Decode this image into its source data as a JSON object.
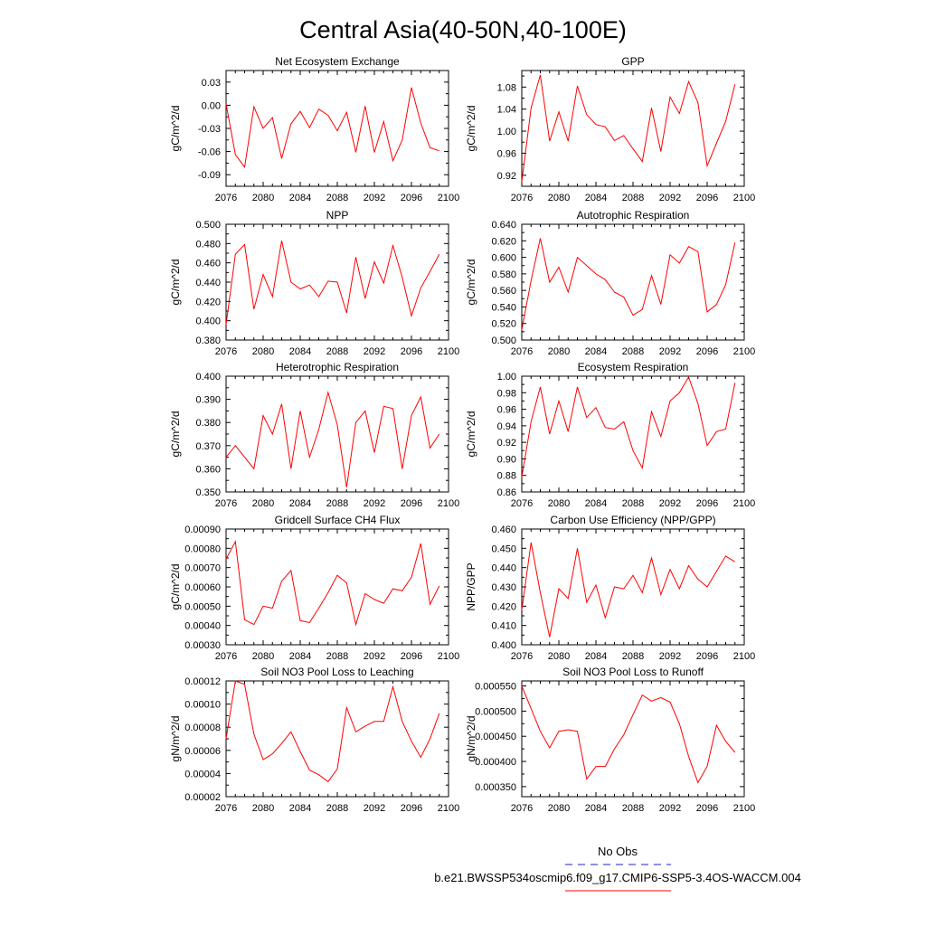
{
  "figure": {
    "title": "Central Asia(40-50N,40-100E)",
    "legend": {
      "obs_label": "No Obs",
      "case_label": "b.e21.BWSSP534oscmip6.f09_g17.CMIP6-SSP5-3.4OS-WACCM.004",
      "obs_color": "#2222cc",
      "case_color": "#ff0000"
    }
  },
  "chart_data": [
    {
      "type": "line",
      "title": "Net Ecosystem Exchange",
      "ylabel": "gC/m^2/d",
      "xlabel": "",
      "xlim": [
        2076,
        2100
      ],
      "ylim": [
        -0.105,
        0.045
      ],
      "xticks": [
        2076,
        2080,
        2084,
        2088,
        2092,
        2096,
        2100
      ],
      "yticks": [
        -0.09,
        -0.06,
        -0.03,
        0.0,
        0.03
      ],
      "ytick_labels": [
        "-0.09",
        "-0.06",
        "-0.03",
        "0.00",
        "0.03"
      ],
      "x": [
        2076,
        2077,
        2078,
        2079,
        2080,
        2081,
        2082,
        2083,
        2084,
        2085,
        2086,
        2087,
        2088,
        2089,
        2090,
        2091,
        2092,
        2093,
        2094,
        2095,
        2096,
        2097,
        2098,
        2099
      ],
      "series": [
        {
          "name": "b.e21.BWSSP534oscmip6.f09_g17.CMIP6-SSP5-3.4OS-WACCM.004",
          "color": "#ff0000",
          "values": [
            0.002,
            -0.064,
            -0.08,
            -0.002,
            -0.03,
            -0.016,
            -0.069,
            -0.024,
            -0.008,
            -0.029,
            -0.005,
            -0.013,
            -0.033,
            -0.009,
            -0.061,
            -0.001,
            -0.061,
            -0.021,
            -0.072,
            -0.045,
            0.023,
            -0.023,
            -0.055,
            -0.059
          ]
        }
      ]
    },
    {
      "type": "line",
      "title": "GPP",
      "ylabel": "gC/m^2/d",
      "xlabel": "",
      "xlim": [
        2076,
        2100
      ],
      "ylim": [
        0.9,
        1.11
      ],
      "xticks": [
        2076,
        2080,
        2084,
        2088,
        2092,
        2096,
        2100
      ],
      "yticks": [
        0.92,
        0.96,
        1.0,
        1.04,
        1.08
      ],
      "ytick_labels": [
        "0.92",
        "0.96",
        "1.00",
        "1.04",
        "1.08"
      ],
      "x": [
        2076,
        2077,
        2078,
        2079,
        2080,
        2081,
        2082,
        2083,
        2084,
        2085,
        2086,
        2087,
        2088,
        2089,
        2090,
        2091,
        2092,
        2093,
        2094,
        2095,
        2096,
        2097,
        2098,
        2099
      ],
      "series": [
        {
          "name": "b.e21.BWSSP534oscmip6.f09_g17.CMIP6-SSP5-3.4OS-WACCM.004",
          "color": "#ff0000",
          "values": [
            0.908,
            1.042,
            1.102,
            0.982,
            1.035,
            0.982,
            1.082,
            1.03,
            1.012,
            1.008,
            0.983,
            0.992,
            0.968,
            0.945,
            1.042,
            0.963,
            1.062,
            1.032,
            1.09,
            1.052,
            0.937,
            0.978,
            1.018,
            1.085
          ]
        }
      ]
    },
    {
      "type": "line",
      "title": "NPP",
      "ylabel": "gC/m^2/d",
      "xlabel": "",
      "xlim": [
        2076,
        2100
      ],
      "ylim": [
        0.38,
        0.5
      ],
      "xticks": [
        2076,
        2080,
        2084,
        2088,
        2092,
        2096,
        2100
      ],
      "yticks": [
        0.38,
        0.4,
        0.42,
        0.44,
        0.46,
        0.48,
        0.5
      ],
      "ytick_labels": [
        "0.380",
        "0.400",
        "0.420",
        "0.440",
        "0.460",
        "0.480",
        "0.500"
      ],
      "x": [
        2076,
        2077,
        2078,
        2079,
        2080,
        2081,
        2082,
        2083,
        2084,
        2085,
        2086,
        2087,
        2088,
        2089,
        2090,
        2091,
        2092,
        2093,
        2094,
        2095,
        2096,
        2097,
        2098,
        2099
      ],
      "series": [
        {
          "name": "b.e21.BWSSP534oscmip6.f09_g17.CMIP6-SSP5-3.4OS-WACCM.004",
          "color": "#ff0000",
          "values": [
            0.396,
            0.469,
            0.479,
            0.412,
            0.448,
            0.425,
            0.483,
            0.44,
            0.433,
            0.437,
            0.425,
            0.441,
            0.44,
            0.408,
            0.466,
            0.423,
            0.461,
            0.439,
            0.478,
            0.445,
            0.405,
            0.434,
            0.451,
            0.469
          ]
        }
      ]
    },
    {
      "type": "line",
      "title": "Autotrophic Respiration",
      "ylabel": "gC/m^2/d",
      "xlabel": "",
      "xlim": [
        2076,
        2100
      ],
      "ylim": [
        0.5,
        0.64
      ],
      "xticks": [
        2076,
        2080,
        2084,
        2088,
        2092,
        2096,
        2100
      ],
      "yticks": [
        0.5,
        0.52,
        0.54,
        0.56,
        0.58,
        0.6,
        0.62,
        0.64
      ],
      "ytick_labels": [
        "0.500",
        "0.520",
        "0.540",
        "0.560",
        "0.580",
        "0.600",
        "0.620",
        "0.640"
      ],
      "x": [
        2076,
        2077,
        2078,
        2079,
        2080,
        2081,
        2082,
        2083,
        2084,
        2085,
        2086,
        2087,
        2088,
        2089,
        2090,
        2091,
        2092,
        2093,
        2094,
        2095,
        2096,
        2097,
        2098,
        2099
      ],
      "series": [
        {
          "name": "b.e21.BWSSP534oscmip6.f09_g17.CMIP6-SSP5-3.4OS-WACCM.004",
          "color": "#ff0000",
          "values": [
            0.512,
            0.572,
            0.623,
            0.57,
            0.588,
            0.558,
            0.6,
            0.59,
            0.58,
            0.573,
            0.558,
            0.552,
            0.53,
            0.537,
            0.578,
            0.543,
            0.603,
            0.593,
            0.613,
            0.607,
            0.534,
            0.543,
            0.567,
            0.618
          ]
        }
      ]
    },
    {
      "type": "line",
      "title": "Heterotrophic Respiration",
      "ylabel": "gC/m^2/d",
      "xlabel": "",
      "xlim": [
        2076,
        2100
      ],
      "ylim": [
        0.35,
        0.4
      ],
      "xticks": [
        2076,
        2080,
        2084,
        2088,
        2092,
        2096,
        2100
      ],
      "yticks": [
        0.35,
        0.36,
        0.37,
        0.38,
        0.39,
        0.4
      ],
      "ytick_labels": [
        "0.350",
        "0.360",
        "0.370",
        "0.380",
        "0.390",
        "0.400"
      ],
      "x": [
        2076,
        2077,
        2078,
        2079,
        2080,
        2081,
        2082,
        2083,
        2084,
        2085,
        2086,
        2087,
        2088,
        2089,
        2090,
        2091,
        2092,
        2093,
        2094,
        2095,
        2096,
        2097,
        2098,
        2099
      ],
      "series": [
        {
          "name": "b.e21.BWSSP534oscmip6.f09_g17.CMIP6-SSP5-3.4OS-WACCM.004",
          "color": "#ff0000",
          "values": [
            0.365,
            0.37,
            0.365,
            0.36,
            0.383,
            0.375,
            0.388,
            0.36,
            0.385,
            0.365,
            0.377,
            0.393,
            0.379,
            0.352,
            0.38,
            0.385,
            0.367,
            0.387,
            0.386,
            0.36,
            0.383,
            0.391,
            0.369,
            0.375
          ]
        }
      ]
    },
    {
      "type": "line",
      "title": "Ecosystem Respiration",
      "ylabel": "gC/m^2/d",
      "xlabel": "",
      "xlim": [
        2076,
        2100
      ],
      "ylim": [
        0.86,
        1.0
      ],
      "xticks": [
        2076,
        2080,
        2084,
        2088,
        2092,
        2096,
        2100
      ],
      "yticks": [
        0.86,
        0.88,
        0.9,
        0.92,
        0.94,
        0.96,
        0.98,
        1.0
      ],
      "ytick_labels": [
        "0.86",
        "0.88",
        "0.90",
        "0.92",
        "0.94",
        "0.96",
        "0.98",
        "1.00"
      ],
      "x": [
        2076,
        2077,
        2078,
        2079,
        2080,
        2081,
        2082,
        2083,
        2084,
        2085,
        2086,
        2087,
        2088,
        2089,
        2090,
        2091,
        2092,
        2093,
        2094,
        2095,
        2096,
        2097,
        2098,
        2099
      ],
      "series": [
        {
          "name": "b.e21.BWSSP534oscmip6.f09_g17.CMIP6-SSP5-3.4OS-WACCM.004",
          "color": "#ff0000",
          "values": [
            0.878,
            0.945,
            0.987,
            0.93,
            0.97,
            0.933,
            0.987,
            0.95,
            0.962,
            0.938,
            0.936,
            0.945,
            0.91,
            0.889,
            0.957,
            0.927,
            0.97,
            0.98,
            0.999,
            0.967,
            0.916,
            0.933,
            0.936,
            0.992
          ]
        }
      ]
    },
    {
      "type": "line",
      "title": "Gridcell Surface CH4 Flux",
      "ylabel": "gC/m^2/d",
      "xlabel": "",
      "xlim": [
        2076,
        2100
      ],
      "ylim": [
        0.0003,
        0.0009
      ],
      "xticks": [
        2076,
        2080,
        2084,
        2088,
        2092,
        2096,
        2100
      ],
      "yticks": [
        0.0003,
        0.0004,
        0.0005,
        0.0006,
        0.0007,
        0.0008,
        0.0009
      ],
      "ytick_labels": [
        "0.00030",
        "0.00040",
        "0.00050",
        "0.00060",
        "0.00070",
        "0.00080",
        "0.00090"
      ],
      "x": [
        2076,
        2077,
        2078,
        2079,
        2080,
        2081,
        2082,
        2083,
        2084,
        2085,
        2086,
        2087,
        2088,
        2089,
        2090,
        2091,
        2092,
        2093,
        2094,
        2095,
        2096,
        2097,
        2098,
        2099
      ],
      "series": [
        {
          "name": "b.e21.BWSSP534oscmip6.f09_g17.CMIP6-SSP5-3.4OS-WACCM.004",
          "color": "#ff0000",
          "values": [
            0.000745,
            0.000835,
            0.00043,
            0.000405,
            0.0005,
            0.00049,
            0.00063,
            0.000685,
            0.000425,
            0.000415,
            0.00049,
            0.00057,
            0.00066,
            0.00062,
            0.000405,
            0.000565,
            0.000535,
            0.000515,
            0.00059,
            0.00058,
            0.00065,
            0.000825,
            0.00051,
            0.000605
          ]
        }
      ]
    },
    {
      "type": "line",
      "title": "Carbon Use Efficiency (NPP/GPP)",
      "ylabel": "NPP/GPP",
      "xlabel": "",
      "xlim": [
        2076,
        2100
      ],
      "ylim": [
        0.4,
        0.46
      ],
      "xticks": [
        2076,
        2080,
        2084,
        2088,
        2092,
        2096,
        2100
      ],
      "yticks": [
        0.4,
        0.41,
        0.42,
        0.43,
        0.44,
        0.45,
        0.46
      ],
      "ytick_labels": [
        "0.400",
        "0.410",
        "0.420",
        "0.430",
        "0.440",
        "0.450",
        "0.460"
      ],
      "x": [
        2076,
        2077,
        2078,
        2079,
        2080,
        2081,
        2082,
        2083,
        2084,
        2085,
        2086,
        2087,
        2088,
        2089,
        2090,
        2091,
        2092,
        2093,
        2094,
        2095,
        2096,
        2097,
        2098,
        2099
      ],
      "series": [
        {
          "name": "b.e21.BWSSP534oscmip6.f09_g17.CMIP6-SSP5-3.4OS-WACCM.004",
          "color": "#ff0000",
          "values": [
            0.418,
            0.453,
            0.427,
            0.404,
            0.429,
            0.424,
            0.45,
            0.422,
            0.431,
            0.414,
            0.43,
            0.429,
            0.436,
            0.427,
            0.445,
            0.426,
            0.439,
            0.429,
            0.441,
            0.434,
            0.43,
            0.438,
            0.446,
            0.443
          ]
        }
      ]
    },
    {
      "type": "line",
      "title": "Soil NO3 Pool Loss to Leaching",
      "ylabel": "gN/m^2/d",
      "xlabel": "",
      "xlim": [
        2076,
        2100
      ],
      "ylim": [
        2e-05,
        0.00012
      ],
      "xticks": [
        2076,
        2080,
        2084,
        2088,
        2092,
        2096,
        2100
      ],
      "yticks": [
        2e-05,
        4e-05,
        6e-05,
        8e-05,
        0.0001,
        0.00012
      ],
      "ytick_labels": [
        "0.00002",
        "0.00004",
        "0.00006",
        "0.00008",
        "0.00010",
        "0.00012"
      ],
      "x": [
        2076,
        2077,
        2078,
        2079,
        2080,
        2081,
        2082,
        2083,
        2084,
        2085,
        2086,
        2087,
        2088,
        2089,
        2090,
        2091,
        2092,
        2093,
        2094,
        2095,
        2096,
        2097,
        2098,
        2099
      ],
      "series": [
        {
          "name": "b.e21.BWSSP534oscmip6.f09_g17.CMIP6-SSP5-3.4OS-WACCM.004",
          "color": "#ff0000",
          "values": [
            7e-05,
            0.00012,
            0.000117,
            7.4e-05,
            5.2e-05,
            5.7e-05,
            6.6e-05,
            7.6e-05,
            5.9e-05,
            4.3e-05,
            3.9e-05,
            3.3e-05,
            4.4e-05,
            9.7e-05,
            7.6e-05,
            8.1e-05,
            8.5e-05,
            8.5e-05,
            0.000115,
            8.5e-05,
            6.8e-05,
            5.4e-05,
            7e-05,
            9.2e-05
          ]
        }
      ]
    },
    {
      "type": "line",
      "title": "Soil NO3 Pool Loss to Runoff",
      "ylabel": "gN/m^2/d",
      "xlabel": "",
      "xlim": [
        2076,
        2100
      ],
      "ylim": [
        0.00033,
        0.00056
      ],
      "xticks": [
        2076,
        2080,
        2084,
        2088,
        2092,
        2096,
        2100
      ],
      "yticks": [
        0.00035,
        0.0004,
        0.00045,
        0.0005,
        0.00055
      ],
      "ytick_labels": [
        "0.000350",
        "0.000400",
        "0.000450",
        "0.000500",
        "0.000550"
      ],
      "x": [
        2076,
        2077,
        2078,
        2079,
        2080,
        2081,
        2082,
        2083,
        2084,
        2085,
        2086,
        2087,
        2088,
        2089,
        2090,
        2091,
        2092,
        2093,
        2094,
        2095,
        2096,
        2097,
        2098,
        2099
      ],
      "series": [
        {
          "name": "b.e21.BWSSP534oscmip6.f09_g17.CMIP6-SSP5-3.4OS-WACCM.004",
          "color": "#ff0000",
          "values": [
            0.00055,
            0.000505,
            0.00046,
            0.000427,
            0.00046,
            0.000463,
            0.00046,
            0.000365,
            0.00039,
            0.00039,
            0.000425,
            0.000453,
            0.000493,
            0.000532,
            0.00052,
            0.000527,
            0.000518,
            0.000475,
            0.00041,
            0.000358,
            0.00039,
            0.000472,
            0.00044,
            0.000418
          ]
        }
      ]
    }
  ]
}
